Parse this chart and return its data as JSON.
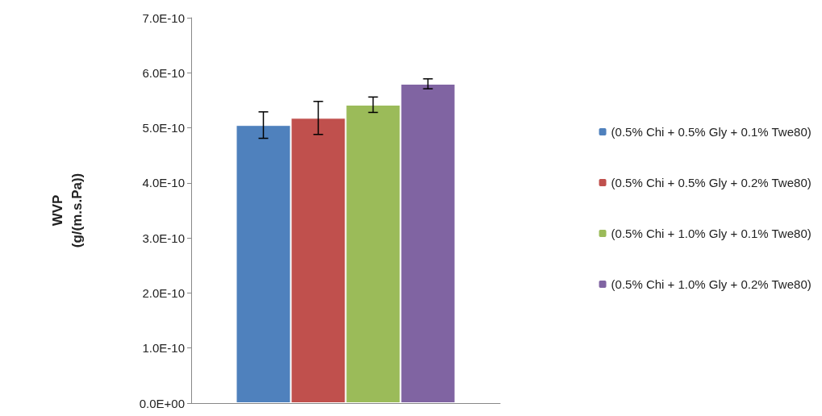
{
  "chart_data": {
    "type": "bar",
    "ylabel": "WVP\n(g/(m.s.Pa))",
    "categories": [
      null
    ],
    "series": [
      {
        "name": "(0.5% Chi + 0.5% Gly + 0.1% Twe80)",
        "color": "#4f81bd",
        "values": [
          5.05e-10
        ],
        "errors": [
          2.4e-11
        ]
      },
      {
        "name": "(0.5% Chi + 0.5% Gly + 0.2% Twe80)",
        "color": "#c0504d",
        "values": [
          5.18e-10
        ],
        "errors": [
          3e-11
        ]
      },
      {
        "name": "(0.5% Chi + 1.0% Gly + 0.1% Twe80)",
        "color": "#9bbb59",
        "values": [
          5.42e-10
        ],
        "errors": [
          1.4e-11
        ]
      },
      {
        "name": "(0.5% Chi + 1.0% Gly + 0.2% Twe80)",
        "color": "#8064a2",
        "values": [
          5.8e-10
        ],
        "errors": [
          9e-12
        ]
      }
    ],
    "ylim": [
      0,
      7e-10
    ],
    "yticks": [
      {
        "value": 0,
        "label": "0.0E+00"
      },
      {
        "value": 1e-10,
        "label": "1.0E-10"
      },
      {
        "value": 2e-10,
        "label": "2.0E-10"
      },
      {
        "value": 3e-10,
        "label": "3.0E-10"
      },
      {
        "value": 4e-10,
        "label": "4.0E-10"
      },
      {
        "value": 5e-10,
        "label": "5.0E-10"
      },
      {
        "value": 6e-10,
        "label": "6.0E-10"
      },
      {
        "value": 7e-10,
        "label": "7.0E-10"
      }
    ],
    "grid": false,
    "legend": "right"
  }
}
